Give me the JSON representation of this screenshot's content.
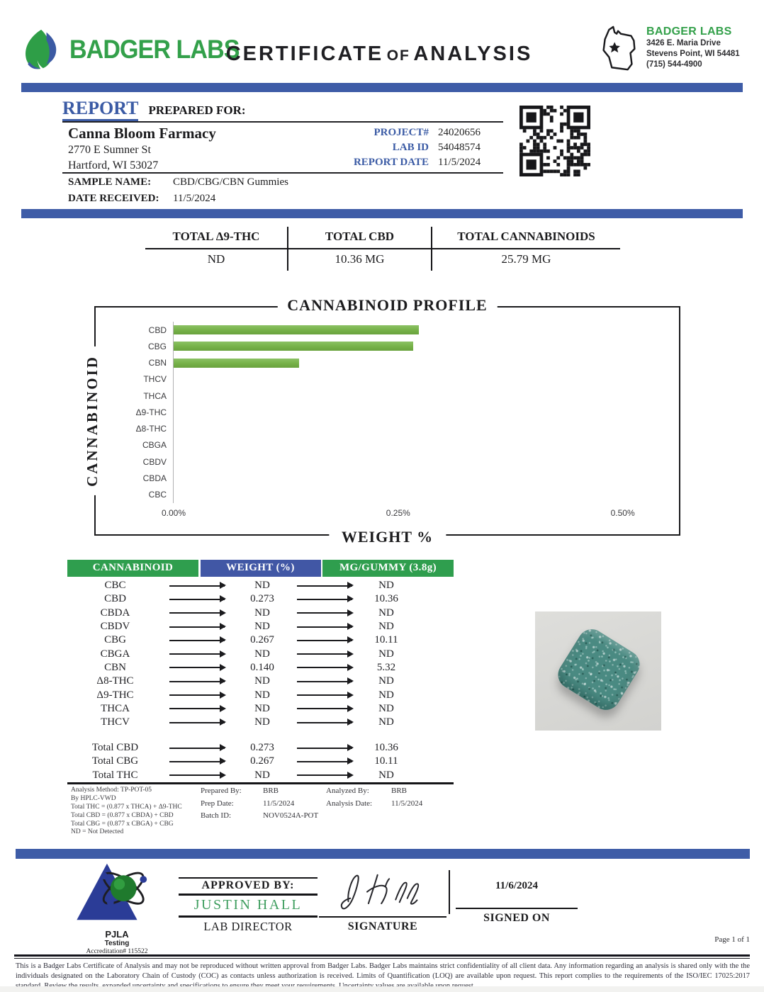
{
  "header": {
    "logo_text": "BADGER LABS",
    "title_left": "CERTIFICATE",
    "title_of": "OF",
    "title_right": "ANALYSIS",
    "lab_badge": {
      "name": "BADGER LABS",
      "address_line1": "3426 E. Maria Drive",
      "address_line2": "Stevens Point, WI 54481",
      "phone": "(715) 544-4900"
    }
  },
  "report": {
    "section_title_report": "REPORT",
    "section_title_rest": "PREPARED FOR:",
    "client_name": "Canna Bloom Farmacy",
    "client_address1": "2770 E Sumner St",
    "client_address2": "Hartford, WI 53027",
    "meta": [
      {
        "label": "PROJECT#",
        "value": "24020656"
      },
      {
        "label": "LAB ID",
        "value": "54048574"
      },
      {
        "label": "REPORT DATE",
        "value": "11/5/2024"
      }
    ],
    "sample_name_label": "SAMPLE NAME:",
    "sample_name": "CBD/CBG/CBN Gummies",
    "date_received_label": "DATE RECEIVED:",
    "date_received": "11/5/2024"
  },
  "totals": {
    "columns": [
      {
        "label": "TOTAL Δ9-THC",
        "value": "ND"
      },
      {
        "label": "TOTAL CBD",
        "value": "10.36 MG"
      },
      {
        "label": "TOTAL CANNABINOIDS",
        "value": "25.79 MG"
      }
    ]
  },
  "chart_data": {
    "type": "bar",
    "orientation": "horizontal",
    "title": "CANNABINOID PROFILE",
    "xlabel": "WEIGHT %",
    "ylabel": "CANNABINOID",
    "categories": [
      "CBD",
      "CBG",
      "CBN",
      "THCV",
      "THCA",
      "Δ9-THC",
      "Δ8-THC",
      "CBGA",
      "CBDV",
      "CBDA",
      "CBC"
    ],
    "values": [
      0.273,
      0.267,
      0.14,
      0,
      0,
      0,
      0,
      0,
      0,
      0,
      0
    ],
    "x_ticks": [
      "0.00%",
      "0.25%",
      "0.50%"
    ],
    "x_tick_values": [
      0,
      0.25,
      0.5
    ],
    "xlim": [
      0,
      0.55
    ],
    "bar_color": "#79b44c",
    "grid": false,
    "legend": "none"
  },
  "results_table": {
    "headers": [
      {
        "label": "CANNABINOID",
        "color": "#2f9e4e"
      },
      {
        "label": "WEIGHT (%)",
        "color": "#4157a5"
      },
      {
        "label": "MG/GUMMY (3.8g)",
        "color": "#2f9e4e"
      }
    ],
    "rows": [
      {
        "name": "CBC",
        "weight": "ND",
        "mg": "ND"
      },
      {
        "name": "CBD",
        "weight": "0.273",
        "mg": "10.36"
      },
      {
        "name": "CBDA",
        "weight": "ND",
        "mg": "ND"
      },
      {
        "name": "CBDV",
        "weight": "ND",
        "mg": "ND"
      },
      {
        "name": "CBG",
        "weight": "0.267",
        "mg": "10.11"
      },
      {
        "name": "CBGA",
        "weight": "ND",
        "mg": "ND"
      },
      {
        "name": "CBN",
        "weight": "0.140",
        "mg": "5.32"
      },
      {
        "name": "Δ8-THC",
        "weight": "ND",
        "mg": "ND"
      },
      {
        "name": "Δ9-THC",
        "weight": "ND",
        "mg": "ND"
      },
      {
        "name": "THCA",
        "weight": "ND",
        "mg": "ND"
      },
      {
        "name": "THCV",
        "weight": "ND",
        "mg": "ND"
      }
    ],
    "total_rows": [
      {
        "name": "Total CBD",
        "weight": "0.273",
        "mg": "10.36"
      },
      {
        "name": "Total CBG",
        "weight": "0.267",
        "mg": "10.11"
      },
      {
        "name": "Total THC",
        "weight": "ND",
        "mg": "ND"
      }
    ]
  },
  "analysis_info": {
    "notes": [
      "Analysis Method: TP-POT-05",
      "By HPLC-VWD",
      "Total THC = (0.877 x  THCA) + Δ9-THC",
      "Total CBD = (0.877 x  CBDA) + CBD",
      "Total CBG = (0.877 x  CBGA) + CBG",
      "ND = Not Detected"
    ],
    "prepared_by_label": "Prepared By:",
    "prepared_by": "BRB",
    "prep_date_label": "Prep Date:",
    "prep_date": "11/5/2024",
    "batch_id_label": "Batch ID:",
    "batch_id": "NOV0524A-POT",
    "analyzed_by_label": "Analyzed By:",
    "analyzed_by": "BRB",
    "analysis_date_label": "Analysis Date:",
    "analysis_date": "11/5/2024"
  },
  "approval": {
    "pjla_line1": "PJLA",
    "pjla_line2": "Testing",
    "pjla_line3": "Accreditation# 115522",
    "approved_by_label": "APPROVED BY:",
    "approver_name": "JUSTIN HALL",
    "approver_title": "LAB DIRECTOR",
    "signature_label": "SIGNATURE",
    "signed_on_label": "SIGNED ON",
    "signed_on_date": "11/6/2024"
  },
  "footer": {
    "page_label": "Page 1 of 1",
    "disclaimer": "This is a Badger Labs Certificate of Analysis and may not be reproduced without written approval from Badger Labs. Badger Labs maintains strict confidentiality of all client data. Any information regarding an analysis is shared only with the the individuals designated on the Laboratory Chain of Custody (COC) as contacts unless authorization is received. Limits of Quantification (LOQ) are available upon request. This report complies to the requirements of the ISO/IEC 17025:2017 standard. Review the results, expanded uncertainty and specifications to ensure they meet your requirements. Uncertainty values are available upon request."
  },
  "colors": {
    "band_blue": "#3e5ca7",
    "label_blue": "#3b5ba5",
    "brand_green": "#33a04a",
    "bar_green": "#79b44c",
    "header_green": "#2f9e4e",
    "header_blue": "#4157a5",
    "approver_green": "#3f9e5f"
  }
}
